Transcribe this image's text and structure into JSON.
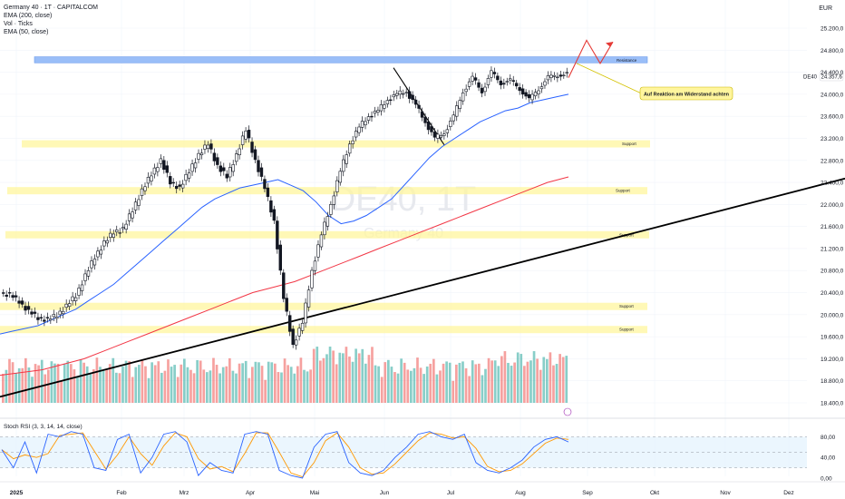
{
  "legend": {
    "title": "Germany 40 · 1T · CAPITALCOM",
    "indicators": [
      "EMA (200, close)",
      "Vol · Ticks",
      "EMA (50, close)"
    ]
  },
  "currency": "EUR",
  "watermark": {
    "symbol": "DE40, 1T",
    "name": "Germany 40"
  },
  "price_label": {
    "symbol": "DE40",
    "value": "24.357,6"
  },
  "stoch_label": "Stoch RSI (3, 3, 14, 14, close)",
  "annotation": "Auf Reaktion am Widerstand achten",
  "colors": {
    "up": "#26a69a",
    "down": "#ef5350",
    "candle": "#131722",
    "ema50": "#2962ff",
    "ema200": "#f23645",
    "resistance": "#90b8f8",
    "support": "#fff59d",
    "stoch_k": "#2962ff",
    "stoch_d": "#ff9800",
    "stoch_band": "#e3f2fd"
  },
  "chart_data": {
    "type": "candlestick",
    "y_axis_ticks": [
      "25.200,0",
      "24.800,0",
      "24.400,0",
      "24.000,0",
      "23.600,0",
      "23.200,0",
      "22.800,0",
      "22.400,0",
      "22.000,0",
      "21.600,0",
      "21.200,0",
      "20.800,0",
      "20.400,0",
      "20.000,0",
      "19.600,0",
      "19.200,0",
      "18.800,0",
      "18.400,0"
    ],
    "y_values": [
      25200,
      24800,
      24400,
      24000,
      23600,
      23200,
      22800,
      22400,
      22000,
      21600,
      21200,
      20800,
      20400,
      20000,
      19600,
      19200,
      18800,
      18400
    ],
    "x_axis_ticks": [
      "2025",
      "Feb",
      "Mrz",
      "Apr",
      "Mai",
      "Jun",
      "Jul",
      "Aug",
      "Sep",
      "Okt",
      "Nov",
      "Dez"
    ],
    "stoch_ticks": [
      "80,00",
      "40,00",
      "0,00"
    ],
    "stoch_values": [
      80,
      40,
      0
    ],
    "resistance": {
      "label": "Resistance",
      "price_range": [
        24570,
        24680
      ]
    },
    "supports": [
      {
        "label": "Support",
        "price": 23100
      },
      {
        "label": "Support",
        "price": 22250
      },
      {
        "label": "Support",
        "price": 21450
      },
      {
        "label": "Support",
        "price": 20150
      },
      {
        "label": "Support",
        "price": 19730
      }
    ],
    "close_series": [
      20400,
      20350,
      20250,
      20050,
      19950,
      19900,
      20000,
      20150,
      20350,
      20700,
      21050,
      21300,
      21500,
      21550,
      21900,
      22250,
      22550,
      22800,
      22400,
      22300,
      22600,
      22900,
      23100,
      22700,
      22500,
      22900,
      23350,
      22800,
      22300,
      21700,
      20300,
      19450,
      19850,
      20800,
      21450,
      22000,
      22600,
      23100,
      23400,
      23600,
      23700,
      23900,
      24000,
      24050,
      23800,
      23500,
      23200,
      23300,
      23600,
      24050,
      24300,
      24050,
      24400,
      24200,
      24250,
      24100,
      23900,
      24100,
      24300,
      24350,
      24357.6
    ],
    "ema50_series": [
      19650,
      19700,
      19750,
      19800,
      19900,
      20000,
      20100,
      20250,
      20400,
      20550,
      20750,
      20950,
      21150,
      21350,
      21550,
      21750,
      21950,
      22100,
      22200,
      22300,
      22350,
      22400,
      22450,
      22350,
      22250,
      22050,
      21800,
      21650,
      21700,
      21800,
      21950,
      22100,
      22350,
      22600,
      22850,
      23050,
      23200,
      23350,
      23500,
      23600,
      23700,
      23750,
      23850,
      23900,
      23950,
      24000
    ],
    "ema200_series": [
      18900,
      18950,
      19000,
      19100,
      19200,
      19350,
      19500,
      19650,
      19800,
      19950,
      20100,
      20250,
      20400,
      20500,
      20600,
      20750,
      20900,
      21050,
      21200,
      21350,
      21500,
      21650,
      21800,
      21950,
      22100,
      22250,
      22400,
      22500
    ],
    "stoch_series": [
      55,
      20,
      70,
      10,
      85,
      80,
      90,
      85,
      20,
      15,
      75,
      85,
      10,
      40,
      85,
      90,
      70,
      5,
      30,
      15,
      10,
      85,
      90,
      85,
      15,
      5,
      0,
      60,
      85,
      90,
      30,
      10,
      5,
      15,
      40,
      60,
      85,
      90,
      80,
      75,
      85,
      30,
      15,
      10,
      20,
      35,
      60,
      75,
      80,
      70
    ]
  }
}
